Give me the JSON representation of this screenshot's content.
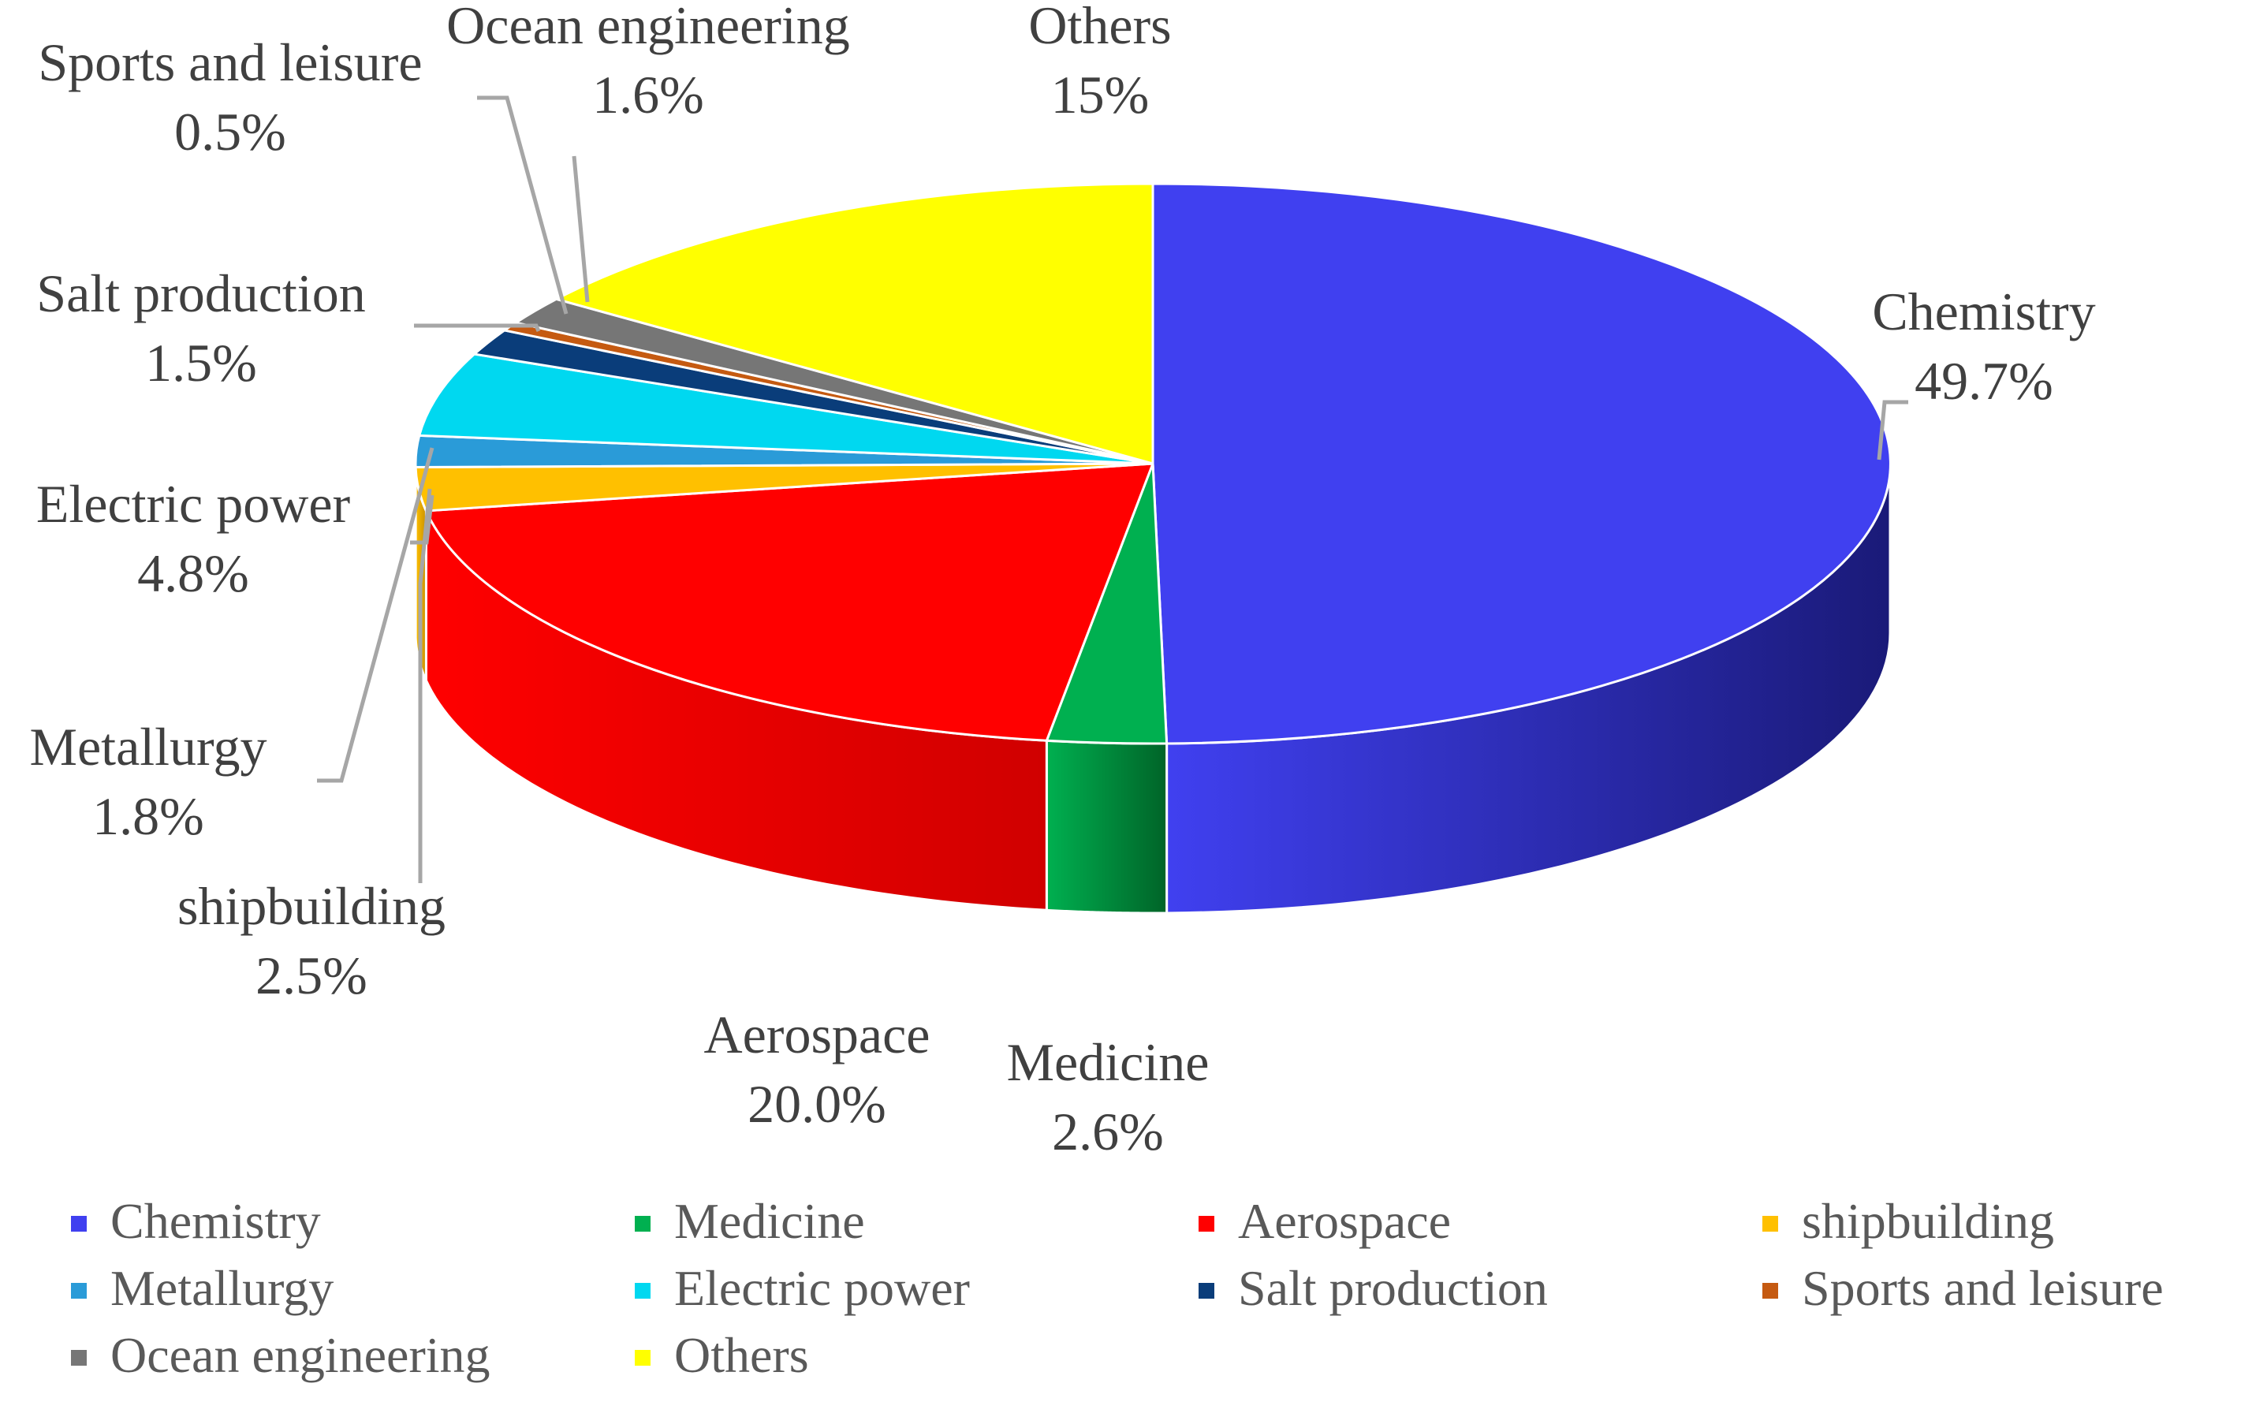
{
  "chart_data": {
    "type": "pie",
    "variant": "3d",
    "title": "",
    "categories": [
      "Chemistry",
      "Medicine",
      "Aerospace",
      "shipbuilding",
      "Metallurgy",
      "Electric power",
      "Salt production",
      "Sports and leisure",
      "Ocean engineering",
      "Others"
    ],
    "values": [
      49.7,
      2.6,
      20.0,
      2.5,
      1.8,
      4.8,
      1.5,
      0.5,
      1.6,
      15
    ],
    "value_labels": [
      "49.7%",
      "2.6%",
      "20.0%",
      "2.5%",
      "1.8%",
      "4.8%",
      "1.5%",
      "0.5%",
      "1.6%",
      "15%"
    ],
    "colors": [
      "#4040f0",
      "#00b050",
      "#ff0000",
      "#ffc000",
      "#2a9bd8",
      "#00d8f0",
      "#0a3d7a",
      "#c55a11",
      "#767676",
      "#ffff00"
    ],
    "side_colors": [
      "#1a1a78",
      "#006428",
      "#d00000",
      "#c89000",
      "#1a6fa0",
      "#00a8c0",
      "#062850",
      "#8a3c0a",
      "#505050",
      "#c8c800"
    ],
    "start_angle": "top (12 o'clock)",
    "direction": "clockwise",
    "legend_position": "bottom",
    "leader_lines": true
  }
}
